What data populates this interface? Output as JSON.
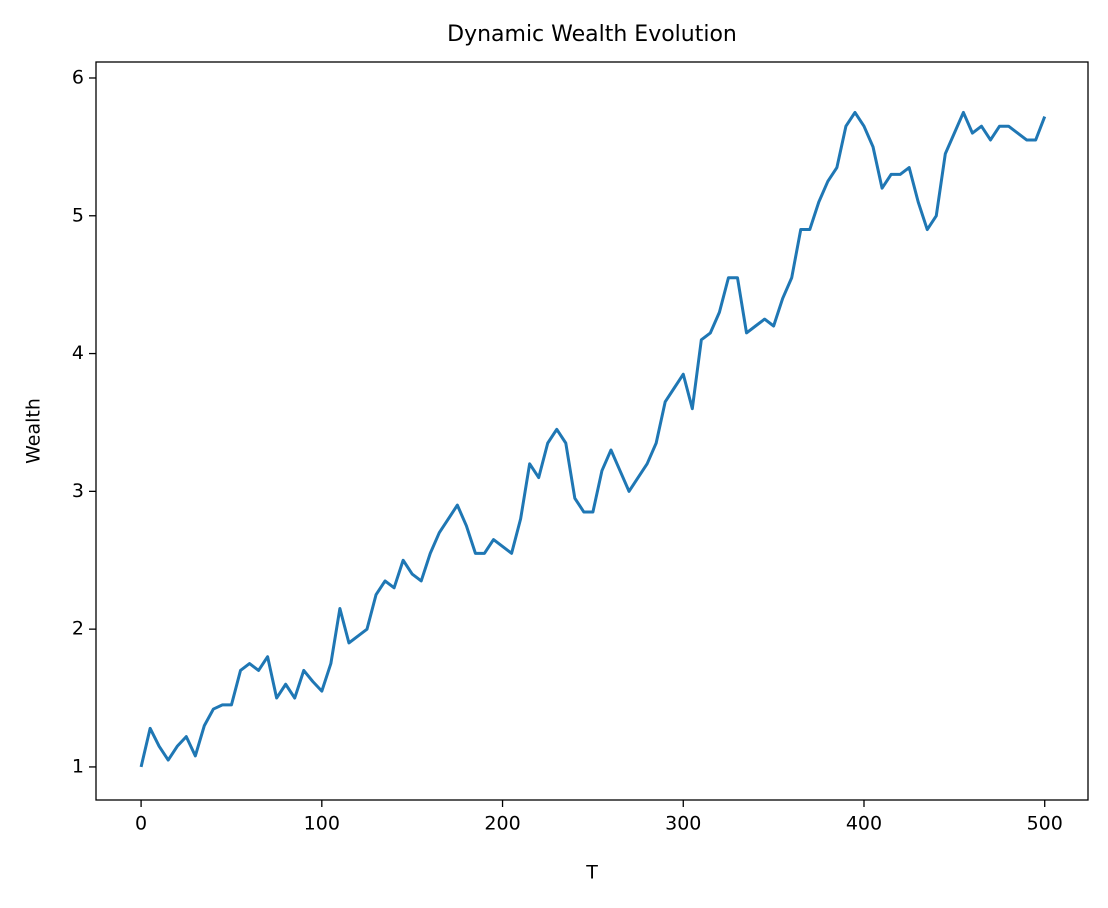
{
  "chart_data": {
    "type": "line",
    "title": "Dynamic Wealth Evolution",
    "x_label": "T",
    "y_label": "Wealth",
    "x": [
      0,
      5,
      10,
      15,
      20,
      25,
      30,
      35,
      40,
      45,
      50,
      55,
      60,
      65,
      70,
      75,
      80,
      85,
      90,
      95,
      100,
      105,
      110,
      115,
      120,
      125,
      130,
      135,
      140,
      145,
      150,
      155,
      160,
      165,
      170,
      175,
      180,
      185,
      190,
      195,
      200,
      205,
      210,
      215,
      220,
      225,
      230,
      235,
      240,
      245,
      250,
      255,
      260,
      265,
      270,
      275,
      280,
      285,
      290,
      295,
      300,
      305,
      310,
      315,
      320,
      325,
      330,
      335,
      340,
      345,
      350,
      355,
      360,
      365,
      370,
      375,
      380,
      385,
      390,
      395,
      400,
      405,
      410,
      415,
      420,
      425,
      430,
      435,
      440,
      445,
      450,
      455,
      460,
      465,
      470,
      475,
      480,
      485,
      490,
      495,
      500
    ],
    "series": [
      {
        "name": "Wealth",
        "color": "#1f77b4",
        "values": [
          1.0,
          1.28,
          1.15,
          1.05,
          1.15,
          1.22,
          1.08,
          1.3,
          1.42,
          1.45,
          1.45,
          1.7,
          1.75,
          1.7,
          1.8,
          1.5,
          1.6,
          1.5,
          1.7,
          1.62,
          1.55,
          1.75,
          2.15,
          1.9,
          1.95,
          2.0,
          2.25,
          2.35,
          2.3,
          2.5,
          2.4,
          2.35,
          2.55,
          2.7,
          2.8,
          2.9,
          2.75,
          2.55,
          2.55,
          2.65,
          2.6,
          2.55,
          2.8,
          3.2,
          3.1,
          3.35,
          3.45,
          3.35,
          2.95,
          2.85,
          2.85,
          3.15,
          3.3,
          3.15,
          3.0,
          3.1,
          3.2,
          3.35,
          3.65,
          3.75,
          3.85,
          3.6,
          4.1,
          4.15,
          4.3,
          4.55,
          4.55,
          4.15,
          4.2,
          4.25,
          4.2,
          4.4,
          4.55,
          4.9,
          4.9,
          5.1,
          5.25,
          5.35,
          5.65,
          5.75,
          5.65,
          5.5,
          5.2,
          5.3,
          5.3,
          5.35,
          5.1,
          4.9,
          5.0,
          5.45,
          5.6,
          5.75,
          5.6,
          5.65,
          5.55,
          5.65,
          5.65,
          5.6,
          5.55,
          5.55,
          5.72
        ]
      }
    ],
    "xlim": [
      -24.95,
      523.95
    ],
    "xticks": [
      0,
      100,
      200,
      300,
      400,
      500
    ],
    "ylim": [
      0.76,
      6.116
    ],
    "yticks": [
      1,
      2,
      3,
      4,
      5,
      6
    ],
    "grid": false
  }
}
